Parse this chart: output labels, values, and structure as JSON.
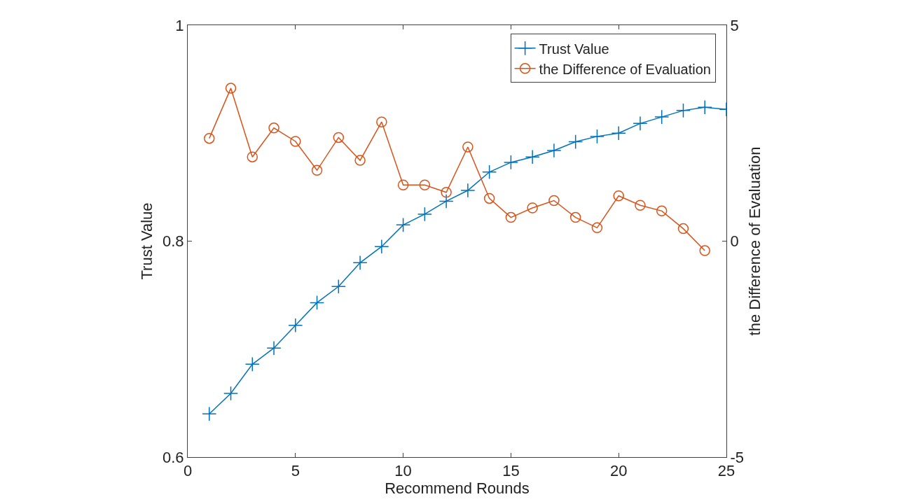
{
  "chart_data": {
    "type": "line",
    "xlabel": "Recommend Rounds",
    "ylabel": "Trust Value",
    "y2label": "the Difference of Evaluation",
    "xlim": [
      0,
      25
    ],
    "xticks": [
      0,
      5,
      10,
      15,
      20,
      25
    ],
    "ylim": [
      0.6,
      1
    ],
    "yticks": [
      0.6,
      0.8,
      1
    ],
    "y2lim": [
      -5,
      5
    ],
    "y2ticks": [
      -5,
      0,
      5
    ],
    "legend": "top right",
    "series": [
      {
        "name": "Trust Value",
        "color": "#0072bd",
        "marker": "cross",
        "x": [
          1,
          2,
          3,
          4,
          5,
          6,
          7,
          8,
          9,
          10,
          11,
          12,
          13,
          14,
          15,
          16,
          17,
          18,
          19,
          20,
          21,
          22,
          23,
          24,
          25
        ],
        "values": [
          0.64,
          0.659,
          0.686,
          0.701,
          0.722,
          0.743,
          0.758,
          0.78,
          0.795,
          0.815,
          0.825,
          0.837,
          0.847,
          0.864,
          0.873,
          0.878,
          0.884,
          0.892,
          0.897,
          0.9,
          0.909,
          0.915,
          0.921,
          0.924,
          0.922
        ]
      },
      {
        "name": "the Difference of Evaluation",
        "color": "#d95319",
        "marker": "circle",
        "axis": "y2",
        "x": [
          1,
          2,
          3,
          4,
          5,
          6,
          7,
          8,
          9,
          10,
          11,
          12,
          13,
          14,
          15,
          16,
          17,
          18,
          19,
          20,
          21,
          22,
          23,
          24
        ],
        "values": [
          2.38,
          3.54,
          1.95,
          2.62,
          2.31,
          1.64,
          2.4,
          1.87,
          2.76,
          1.3,
          1.3,
          1.13,
          2.18,
          0.99,
          0.55,
          0.77,
          0.94,
          0.55,
          0.31,
          1.05,
          0.83,
          0.7,
          0.29,
          -0.22
        ]
      }
    ]
  }
}
